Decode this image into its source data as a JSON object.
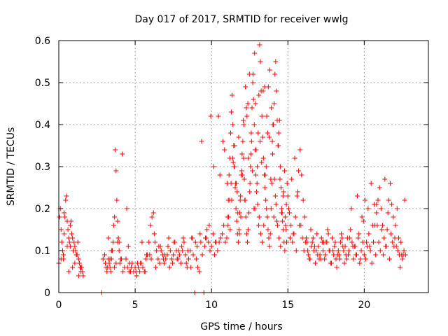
{
  "chart_data": {
    "type": "scatter",
    "title": "Day 017 of 2017, SRMTID for receiver wwlg",
    "xlabel": "GPS time / hours",
    "ylabel": "SRMTID / TECUs",
    "xlim": [
      0,
      24.2
    ],
    "ylim": [
      0,
      0.6
    ],
    "x_ticks": [
      0,
      5,
      10,
      15,
      20
    ],
    "y_ticks": [
      0,
      0.1,
      0.2,
      0.3,
      0.4,
      0.5,
      0.6
    ],
    "x_tick_labels": [
      "0",
      "5",
      "10",
      "15",
      "20"
    ],
    "y_tick_labels": [
      "0",
      "0.1",
      "0.2",
      "0.3",
      "0.4",
      "0.5",
      "0.6"
    ],
    "grid": true,
    "marker": "plus",
    "series": [
      {
        "name": "SRMTID",
        "color": "#ff0000",
        "x": [
          0.0,
          0.05,
          0.1,
          0.15,
          0.2,
          0.25,
          0.3,
          0.35,
          0.4,
          0.45,
          0.5,
          0.55,
          0.6,
          0.65,
          0.7,
          0.75,
          0.8,
          0.85,
          0.9,
          0.95,
          1.0,
          1.05,
          1.1,
          1.15,
          1.2,
          1.25,
          1.3,
          1.35,
          1.4,
          1.45,
          1.5,
          1.55,
          1.6,
          2.8,
          2.9,
          3.0,
          3.05,
          3.1,
          3.15,
          3.2,
          3.25,
          3.3,
          3.35,
          3.4,
          3.45,
          3.5,
          3.55,
          3.6,
          3.65,
          3.7,
          3.75,
          3.8,
          3.85,
          3.9,
          3.95,
          4.0,
          4.1,
          4.2,
          4.3,
          4.4,
          4.5,
          4.6,
          4.7,
          4.8,
          4.9,
          5.0,
          5.1,
          5.2,
          5.3,
          5.4,
          5.5,
          5.6,
          5.7,
          5.8,
          5.9,
          6.0,
          6.1,
          6.2,
          6.3,
          6.4,
          6.5,
          6.6,
          6.7,
          6.8,
          6.9,
          7.0,
          7.1,
          7.2,
          7.3,
          7.4,
          7.5,
          7.6,
          7.7,
          7.8,
          7.9,
          8.0,
          8.1,
          8.2,
          8.3,
          8.4,
          8.5,
          8.6,
          8.7,
          8.8,
          8.9,
          9.0,
          9.1,
          9.2,
          9.3,
          9.4,
          9.5,
          9.6,
          9.7,
          9.8,
          9.9,
          10.0,
          10.1,
          10.2,
          10.3,
          10.4,
          10.5,
          10.6,
          10.7,
          10.8,
          10.9,
          11.0,
          11.05,
          11.1,
          11.15,
          11.2,
          11.25,
          11.3,
          11.35,
          11.4,
          11.45,
          11.5,
          11.55,
          11.6,
          11.65,
          11.7,
          11.75,
          11.8,
          11.85,
          11.9,
          11.95,
          12.0,
          12.05,
          12.1,
          12.15,
          12.2,
          12.25,
          12.3,
          12.35,
          12.4,
          12.45,
          12.5,
          12.55,
          12.6,
          12.65,
          12.7,
          12.75,
          12.8,
          12.85,
          12.9,
          12.95,
          13.0,
          13.05,
          13.1,
          13.15,
          13.2,
          13.25,
          13.3,
          13.35,
          13.4,
          13.45,
          13.5,
          13.55,
          13.6,
          13.65,
          13.7,
          13.75,
          13.8,
          13.85,
          13.9,
          13.95,
          14.0,
          14.05,
          14.1,
          14.15,
          14.2,
          14.25,
          14.3,
          14.35,
          14.4,
          14.45,
          14.5,
          14.55,
          14.6,
          14.65,
          14.7,
          14.75,
          14.8,
          14.85,
          14.9,
          14.95,
          15.0,
          15.1,
          15.2,
          15.3,
          15.4,
          15.5,
          15.6,
          15.7,
          15.8,
          15.9,
          16.0,
          16.1,
          16.2,
          16.3,
          16.4,
          16.5,
          16.6,
          16.7,
          16.8,
          16.9,
          17.0,
          17.1,
          17.2,
          17.3,
          17.4,
          17.5,
          17.6,
          17.7,
          17.8,
          17.9,
          18.0,
          18.1,
          18.2,
          18.3,
          18.4,
          18.5,
          18.6,
          18.7,
          18.8,
          18.9,
          19.0,
          19.1,
          19.2,
          19.3,
          19.4,
          19.5,
          19.6,
          19.7,
          19.8,
          19.9,
          20.0,
          20.1,
          20.2,
          20.3,
          20.4,
          20.5,
          20.6,
          20.7,
          20.8,
          20.9,
          21.0,
          21.1,
          21.2,
          21.3,
          21.4,
          21.5,
          21.6,
          21.7,
          21.8,
          21.9,
          22.0,
          22.1,
          22.2,
          22.3,
          22.4,
          22.5,
          22.6,
          22.7,
          0.15,
          0.35,
          0.55,
          0.75,
          0.95,
          1.15,
          3.25,
          3.45,
          3.65,
          3.75,
          3.85,
          4.15,
          4.45,
          4.75,
          5.05,
          5.35,
          5.65,
          5.95,
          6.25,
          6.55,
          6.85,
          7.15,
          7.45,
          7.75,
          8.05,
          8.35,
          8.65,
          8.95,
          9.25,
          9.55,
          9.85,
          10.15,
          10.45,
          10.75,
          11.02,
          11.12,
          11.22,
          11.32,
          11.42,
          11.52,
          11.62,
          11.72,
          11.82,
          11.92,
          12.02,
          12.12,
          12.22,
          12.32,
          12.42,
          12.52,
          12.62,
          12.72,
          12.82,
          12.88,
          12.92,
          12.98,
          13.02,
          13.12,
          13.22,
          13.32,
          13.42,
          13.52,
          13.62,
          13.72,
          13.82,
          13.92,
          13.98,
          14.02,
          14.12,
          14.22,
          14.32,
          14.42,
          14.52,
          14.62,
          14.72,
          14.82,
          14.92,
          15.05,
          15.25,
          15.45,
          15.65,
          15.85,
          16.05,
          16.25,
          16.45,
          16.65,
          16.85,
          17.05,
          17.25,
          17.45,
          17.65,
          17.85,
          18.05,
          18.25,
          18.45,
          18.65,
          18.85,
          19.05,
          19.25,
          19.45,
          19.65,
          19.85,
          20.05,
          20.25,
          20.45,
          20.65,
          20.85,
          20.95,
          21.05,
          21.25,
          21.45,
          21.65,
          21.85,
          22.05,
          22.25,
          22.45,
          22.65,
          0.25,
          0.65,
          1.05,
          1.45,
          3.35,
          3.95,
          4.55,
          5.15,
          5.75,
          6.35,
          6.95,
          7.55,
          8.15,
          8.75,
          9.35,
          9.95,
          10.55,
          11.08,
          11.28,
          11.48,
          11.68,
          11.88,
          12.08,
          12.28,
          12.48,
          12.68,
          12.84,
          13.08,
          13.28,
          13.48,
          13.68,
          13.88,
          14.08,
          14.28,
          14.48,
          14.68,
          14.88,
          15.15,
          15.55,
          15.95,
          16.35,
          16.75,
          17.15,
          17.55,
          17.95,
          18.35,
          18.75,
          19.15,
          19.55,
          19.95,
          20.35,
          20.75,
          21.15,
          21.55,
          21.95,
          22.35,
          0.3,
          0.9,
          1.3,
          3.5,
          4.05,
          4.65,
          5.45,
          6.05,
          6.65,
          7.25,
          7.85,
          8.45,
          9.05,
          9.65,
          10.25,
          10.85,
          11.18,
          11.38,
          11.58,
          11.78,
          11.98,
          12.18,
          12.38,
          12.58,
          12.78,
          13.18,
          13.38,
          13.58,
          13.78,
          14.18,
          14.38,
          14.58,
          14.78,
          15.35,
          15.75,
          16.15,
          16.55,
          16.95,
          17.35,
          17.75,
          18.15,
          18.55,
          18.95,
          19.35,
          19.75,
          20.15,
          20.55,
          20.8,
          21.35,
          21.75,
          22.15,
          22.55
        ],
        "y": [
          0.07,
          0.18,
          0.2,
          0.15,
          0.12,
          0.1,
          0.08,
          0.19,
          0.18,
          0.22,
          0.23,
          0.17,
          0.15,
          0.13,
          0.12,
          0.11,
          0.17,
          0.14,
          0.13,
          0.1,
          0.12,
          0.11,
          0.1,
          0.09,
          0.09,
          0.12,
          0.08,
          0.07,
          0.06,
          0.05,
          0.06,
          0.05,
          0.04,
          0.0,
          0.08,
          0.09,
          0.07,
          0.06,
          0.05,
          0.06,
          0.08,
          0.07,
          0.06,
          0.05,
          0.08,
          0.1,
          0.12,
          0.16,
          0.18,
          0.34,
          0.29,
          0.22,
          0.17,
          0.13,
          0.1,
          0.07,
          0.08,
          0.05,
          0.06,
          0.08,
          0.06,
          0.05,
          0.05,
          0.07,
          0.05,
          0.06,
          0.04,
          0.06,
          0.05,
          0.07,
          0.06,
          0.05,
          0.08,
          0.09,
          0.12,
          0.16,
          0.18,
          0.19,
          0.12,
          0.1,
          0.08,
          0.07,
          0.1,
          0.09,
          0.07,
          0.08,
          0.09,
          0.13,
          0.1,
          0.08,
          0.09,
          0.12,
          0.1,
          0.08,
          0.09,
          0.07,
          0.1,
          0.12,
          0.09,
          0.06,
          0.08,
          0.1,
          0.13,
          0.09,
          0.0,
          0.08,
          0.06,
          0.05,
          0.12,
          0.09,
          0.0,
          0.13,
          0.15,
          0.12,
          0.1,
          0.11,
          0.14,
          0.09,
          0.12,
          0.1,
          0.12,
          0.13,
          0.14,
          0.16,
          0.12,
          0.13,
          0.18,
          0.22,
          0.28,
          0.32,
          0.38,
          0.43,
          0.47,
          0.4,
          0.35,
          0.3,
          0.25,
          0.2,
          0.17,
          0.14,
          0.12,
          0.15,
          0.19,
          0.23,
          0.28,
          0.33,
          0.36,
          0.32,
          0.27,
          0.22,
          0.18,
          0.14,
          0.12,
          0.15,
          0.19,
          0.24,
          0.3,
          0.38,
          0.44,
          0.5,
          0.46,
          0.4,
          0.34,
          0.28,
          0.24,
          0.3,
          0.38,
          0.47,
          0.59,
          0.55,
          0.48,
          0.42,
          0.37,
          0.32,
          0.28,
          0.25,
          0.22,
          0.2,
          0.18,
          0.15,
          0.13,
          0.11,
          0.14,
          0.2,
          0.26,
          0.33,
          0.4,
          0.45,
          0.52,
          0.55,
          0.48,
          0.41,
          0.35,
          0.38,
          0.41,
          0.3,
          0.25,
          0.2,
          0.17,
          0.15,
          0.12,
          0.1,
          0.16,
          0.21,
          0.26,
          0.23,
          0.19,
          0.16,
          0.12,
          0.14,
          0.18,
          0.23,
          0.29,
          0.34,
          0.28,
          0.22,
          0.18,
          0.13,
          0.1,
          0.08,
          0.15,
          0.12,
          0.1,
          0.07,
          0.14,
          0.11,
          0.09,
          0.13,
          0.1,
          0.08,
          0.12,
          0.15,
          0.1,
          0.07,
          0.13,
          0.09,
          0.12,
          0.06,
          0.1,
          0.08,
          0.14,
          0.11,
          0.07,
          0.09,
          0.13,
          0.1,
          0.15,
          0.12,
          0.08,
          0.11,
          0.09,
          0.13,
          0.07,
          0.1,
          0.12,
          0.09,
          0.08,
          0.11,
          0.14,
          0.1,
          0.07,
          0.12,
          0.16,
          0.19,
          0.22,
          0.25,
          0.2,
          0.16,
          0.13,
          0.11,
          0.15,
          0.22,
          0.26,
          0.21,
          0.18,
          0.13,
          0.11,
          0.1,
          0.09,
          0.12,
          0.08,
          0.1,
          0.09,
          0.08,
          0.14,
          0.11,
          0.16,
          0.1,
          0.09,
          0.13,
          0.1,
          0.06,
          0.07,
          0.12,
          0.33,
          0.2,
          0.06,
          0.05,
          0.07,
          0.05,
          0.09,
          0.14,
          0.11,
          0.08,
          0.11,
          0.07,
          0.08,
          0.11,
          0.07,
          0.06,
          0.12,
          0.14,
          0.11,
          0.16,
          0.3,
          0.42,
          0.36,
          0.26,
          0.18,
          0.15,
          0.22,
          0.31,
          0.35,
          0.26,
          0.19,
          0.14,
          0.18,
          0.28,
          0.4,
          0.49,
          0.42,
          0.32,
          0.26,
          0.36,
          0.52,
          0.57,
          0.45,
          0.34,
          0.26,
          0.21,
          0.18,
          0.14,
          0.12,
          0.16,
          0.28,
          0.42,
          0.49,
          0.53,
          0.44,
          0.36,
          0.4,
          0.27,
          0.21,
          0.16,
          0.13,
          0.11,
          0.19,
          0.24,
          0.18,
          0.12,
          0.2,
          0.27,
          0.32,
          0.24,
          0.16,
          0.1,
          0.12,
          0.08,
          0.13,
          0.1,
          0.08,
          0.12,
          0.09,
          0.14,
          0.07,
          0.11,
          0.09,
          0.12,
          0.1,
          0.08,
          0.13,
          0.11,
          0.09,
          0.14,
          0.18,
          0.22,
          0.2,
          0.26,
          0.21,
          0.16,
          0.12,
          0.1,
          0.09,
          0.11,
          0.08,
          0.12,
          0.16,
          0.13,
          0.09,
          0.22,
          0.1,
          0.05,
          0.07,
          0.06,
          0.08,
          0.12,
          0.11,
          0.07,
          0.09,
          0.06,
          0.09,
          0.12,
          0.13,
          0.13,
          0.36,
          0.42,
          0.28,
          0.16,
          0.26,
          0.3,
          0.24,
          0.22,
          0.41,
          0.44,
          0.52,
          0.29,
          0.2,
          0.16,
          0.31,
          0.49,
          0.38,
          0.27,
          0.18,
          0.17,
          0.27,
          0.23,
          0.15,
          0.13,
          0.1,
          0.13,
          0.09,
          0.11,
          0.08,
          0.12,
          0.1,
          0.09,
          0.11,
          0.2,
          0.23,
          0.17,
          0.11,
          0.09,
          0.15,
          0.19,
          0.11,
          0.06,
          0.09,
          0.06,
          0.04,
          0.1,
          0.08,
          0.07,
          0.12,
          0.08,
          0.11,
          0.06,
          0.1,
          0.1,
          0.11,
          0.13,
          0.12,
          0.34,
          0.22,
          0.32,
          0.26,
          0.37,
          0.29,
          0.22,
          0.45,
          0.33,
          0.2,
          0.36,
          0.48,
          0.3,
          0.37,
          0.23,
          0.35,
          0.19,
          0.29,
          0.14,
          0.16,
          0.12,
          0.11,
          0.09,
          0.12,
          0.1,
          0.08,
          0.13,
          0.09,
          0.11,
          0.08,
          0.12,
          0.16,
          0.21,
          0.27,
          0.14,
          0.2,
          0.09
        ]
      }
    ]
  }
}
